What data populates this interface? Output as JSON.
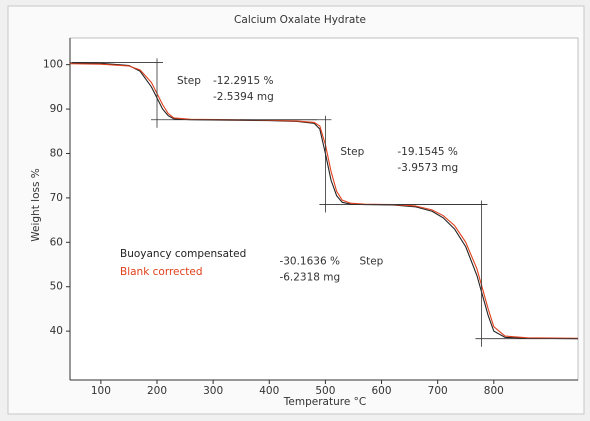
{
  "chart_data": {
    "type": "line",
    "title": "Calcium Oxalate Hydrate",
    "xlabel": "Temperature °C",
    "ylabel": "Weight loss %",
    "x": [
      45,
      100,
      150,
      170,
      190,
      200,
      210,
      220,
      230,
      260,
      330,
      400,
      450,
      480,
      490,
      500,
      510,
      520,
      530,
      545,
      570,
      620,
      660,
      690,
      710,
      730,
      750,
      770,
      780,
      790,
      800,
      820,
      860,
      950
    ],
    "series": [
      {
        "name": "Buoyancy compensated",
        "color": "#222222",
        "values": [
          100.4,
          100.3,
          99.8,
          98.5,
          95,
          92.5,
          90,
          88.5,
          87.8,
          87.6,
          87.5,
          87.4,
          87.2,
          86.8,
          85.5,
          80,
          74,
          70.5,
          69,
          68.6,
          68.5,
          68.4,
          68,
          67,
          65.5,
          63,
          59,
          52.5,
          48,
          43.5,
          40,
          38.6,
          38.4,
          38.3
        ]
      },
      {
        "name": "Blank corrected",
        "color": "#e0401c",
        "values": [
          100.2,
          100.1,
          99.7,
          98.8,
          96,
          93.5,
          91,
          89,
          88,
          87.7,
          87.6,
          87.5,
          87.3,
          87,
          86.2,
          82,
          76,
          71.5,
          69.5,
          68.8,
          68.6,
          68.5,
          68.2,
          67.3,
          66,
          63.8,
          60,
          54,
          49.5,
          45,
          41,
          38.9,
          38.5,
          38.4
        ]
      }
    ],
    "steps": [
      {
        "label": "Step",
        "percent": "-12.2915 %",
        "mass": "-2.5394 mg",
        "x": 200,
        "from": 100.5,
        "to": 87.6
      },
      {
        "label": "Step",
        "percent": "-19.1545 %",
        "mass": "-3.9573 mg",
        "x": 500,
        "from": 87.6,
        "to": 68.5
      },
      {
        "label": "Step",
        "percent": "-30.1636 %",
        "mass": "-6.2318 mg",
        "x": 778,
        "from": 68.5,
        "to": 38.3
      }
    ],
    "xlim": [
      45,
      950
    ],
    "xticks": [
      100,
      200,
      300,
      400,
      500,
      600,
      700,
      800
    ],
    "ylim": [
      29,
      106
    ],
    "yticks": [
      40,
      50,
      60,
      70,
      80,
      90,
      100
    ]
  }
}
